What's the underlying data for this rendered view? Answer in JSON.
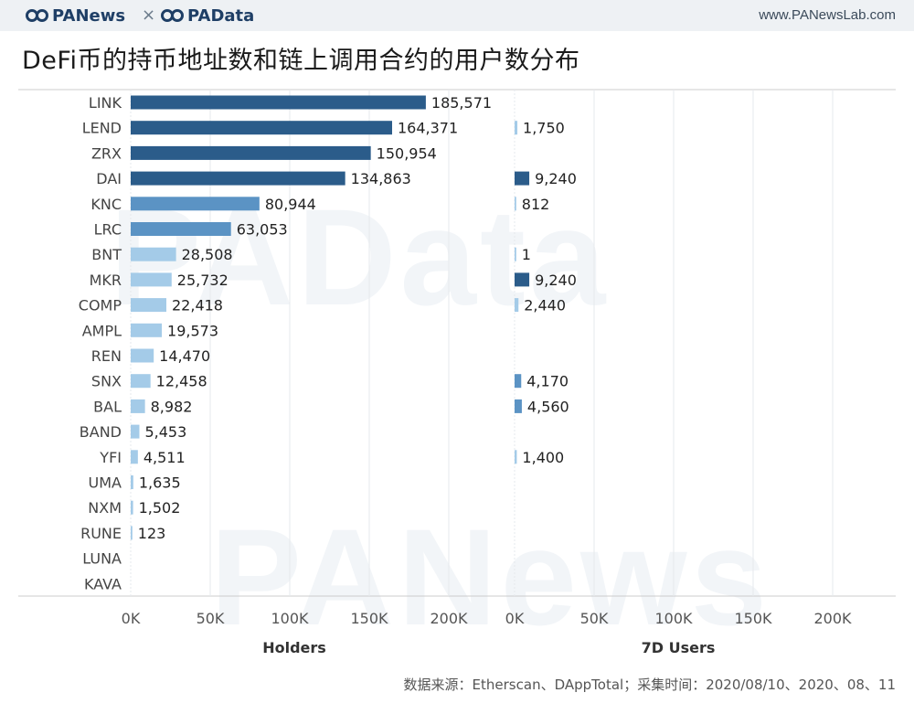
{
  "header": {
    "logo_left": "PANews",
    "separator": "×",
    "logo_right": "PAData",
    "url": "www.PANewsLab.com"
  },
  "title": "DeFi币的持币地址数和链上调用合约的用户数分布",
  "watermarks": [
    "PAData",
    "PANews"
  ],
  "footer": "数据来源：Etherscan、DAppTotal；采集时间：2020/08/10、2020、08、11",
  "colors": {
    "dark": "#2b5c8a",
    "mid": "#5b93c4",
    "light": "#a4cbe8",
    "grid": "#e6e9ed",
    "axis": "#cccccc"
  },
  "chart_data": [
    {
      "type": "bar",
      "orientation": "horizontal",
      "xlabel": "Holders",
      "xlim": [
        0,
        230000
      ],
      "xticks": [
        0,
        50000,
        100000,
        150000,
        200000
      ],
      "xtick_labels": [
        "0K",
        "50K",
        "100K",
        "150K",
        "200K"
      ],
      "grid": true,
      "categories": [
        "LINK",
        "LEND",
        "ZRX",
        "DAI",
        "KNC",
        "LRC",
        "BNT",
        "MKR",
        "COMP",
        "AMPL",
        "REN",
        "SNX",
        "BAL",
        "BAND",
        "YFI",
        "UMA",
        "NXM",
        "RUNE",
        "LUNA",
        "KAVA"
      ],
      "values": [
        185571,
        164371,
        150954,
        134863,
        80944,
        63053,
        28508,
        25732,
        22418,
        19573,
        14470,
        12458,
        8982,
        5453,
        4511,
        1635,
        1502,
        123,
        null,
        null
      ],
      "labels": [
        "185,571",
        "164,371",
        "150,954",
        "134,863",
        "80,944",
        "63,053",
        "28,508",
        "25,732",
        "22,418",
        "19,573",
        "14,470",
        "12,458",
        "8,982",
        "5,453",
        "4,511",
        "1,635",
        "1,502",
        "123",
        "",
        ""
      ]
    },
    {
      "type": "bar",
      "orientation": "horizontal",
      "xlabel": "7D Users",
      "xlim": [
        0,
        230000
      ],
      "xticks": [
        0,
        50000,
        100000,
        150000,
        200000
      ],
      "xtick_labels": [
        "0K",
        "50K",
        "100K",
        "150K",
        "200K"
      ],
      "grid": true,
      "categories": [
        "LINK",
        "LEND",
        "ZRX",
        "DAI",
        "KNC",
        "LRC",
        "BNT",
        "MKR",
        "COMP",
        "AMPL",
        "REN",
        "SNX",
        "BAL",
        "BAND",
        "YFI",
        "UMA",
        "NXM",
        "RUNE",
        "LUNA",
        "KAVA"
      ],
      "values": [
        null,
        1750,
        null,
        9240,
        812,
        null,
        1,
        9240,
        2440,
        null,
        null,
        4170,
        4560,
        null,
        1400,
        null,
        null,
        null,
        null,
        null
      ],
      "labels": [
        "",
        "1,750",
        "",
        "9,240",
        "812",
        "",
        "1",
        "9,240",
        "2,440",
        "",
        "",
        "4,170",
        "4,560",
        "",
        "1,400",
        "",
        "",
        "",
        "",
        ""
      ]
    }
  ]
}
